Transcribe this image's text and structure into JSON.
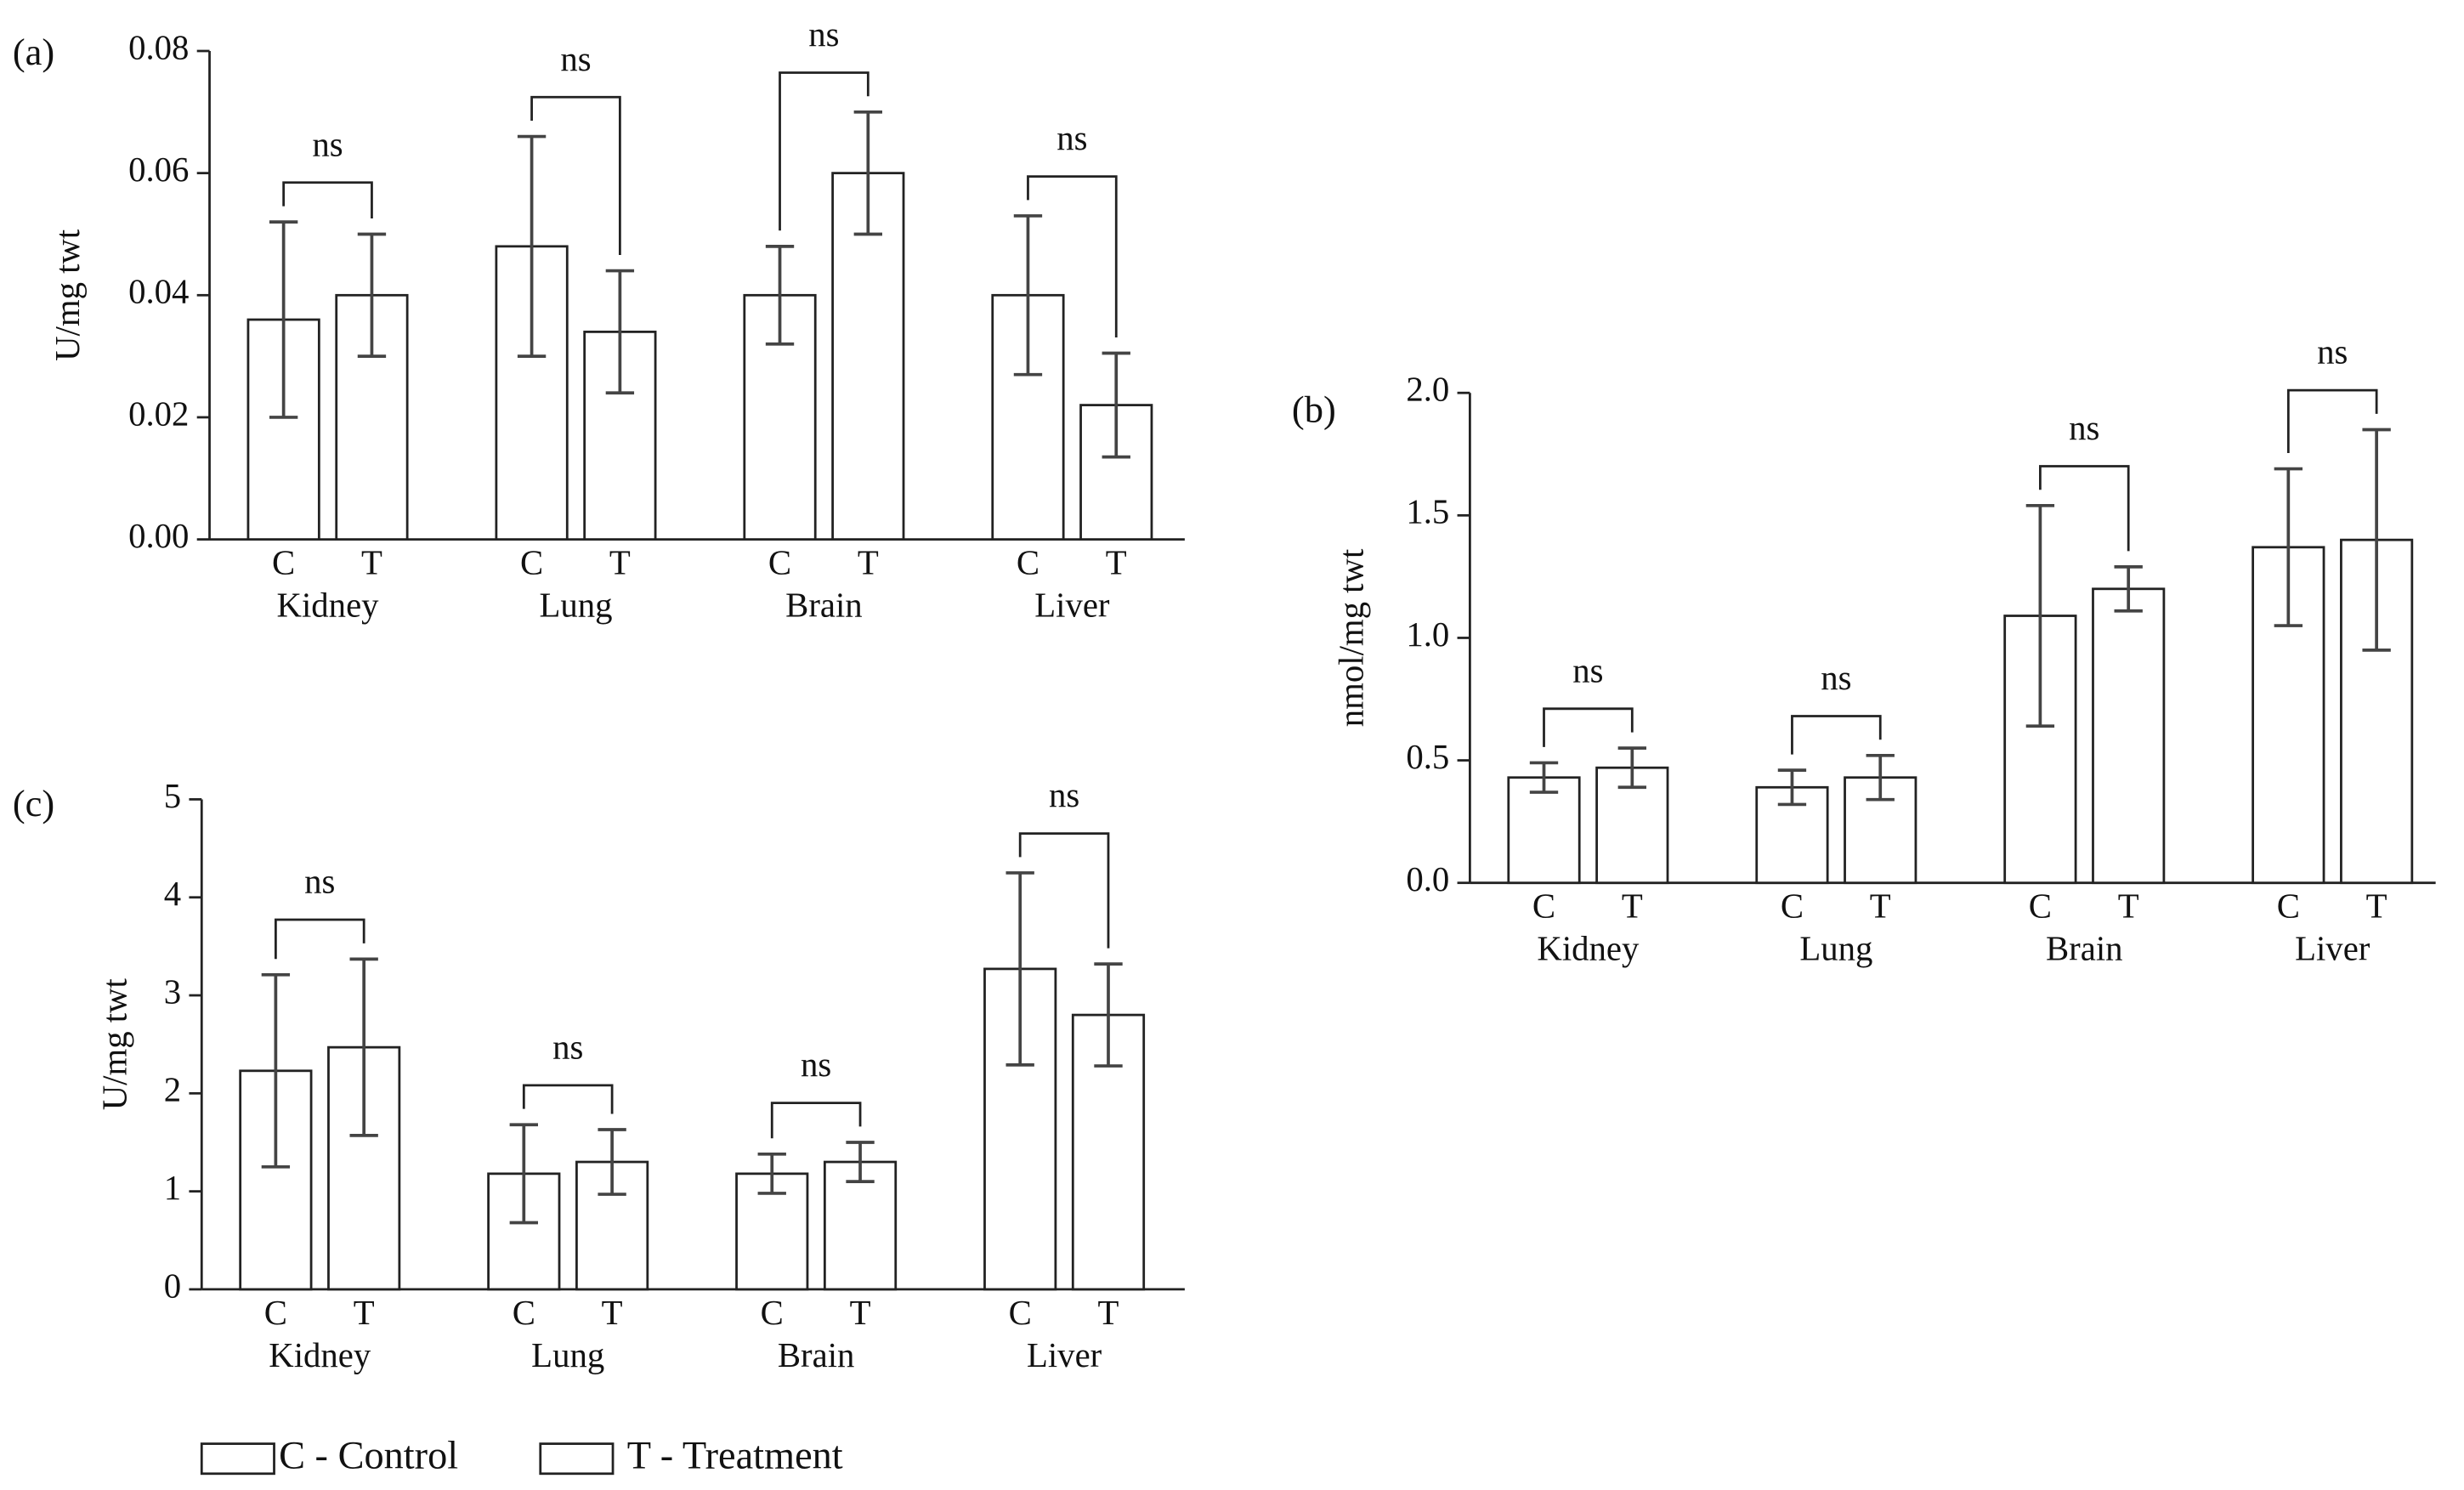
{
  "chart_data": [
    {
      "type": "bar",
      "label": "(a)",
      "y_label": "U/mg twt",
      "categories": [
        "Kidney",
        "Lung",
        "Brain",
        "Liver"
      ],
      "series": [
        {
          "name": "C",
          "color": "#ffffff",
          "values": [
            0.036,
            0.048,
            0.04,
            0.04
          ],
          "errors": [
            0.016,
            0.018,
            0.008,
            0.013
          ]
        },
        {
          "name": "T",
          "color": "#ffffff",
          "values": [
            0.04,
            0.034,
            0.06,
            0.022
          ],
          "errors": [
            0.01,
            0.01,
            0.01,
            0.0085
          ]
        }
      ],
      "annotations": [
        "ns",
        "ns",
        "ns",
        "ns"
      ],
      "ylim": [
        0,
        0.08
      ],
      "yticks": [
        {
          "value": 0,
          "label": "0.00"
        },
        {
          "value": 0.02,
          "label": "0.02"
        },
        {
          "value": 0.04,
          "label": "0.04"
        },
        {
          "value": 0.06,
          "label": "0.06"
        },
        {
          "value": 0.08,
          "label": "0.08"
        }
      ],
      "grid": false
    },
    {
      "type": "bar",
      "label": "(b)",
      "y_label": "nmol/mg twt",
      "categories": [
        "Kidney",
        "Lung",
        "Brain",
        "Liver"
      ],
      "series": [
        {
          "name": "C",
          "color": "#ffffff",
          "values": [
            0.43,
            0.39,
            1.09,
            1.37
          ],
          "errors": [
            0.06,
            0.07,
            0.45,
            0.32
          ]
        },
        {
          "name": "T",
          "color": "#ffffff",
          "values": [
            0.47,
            0.43,
            1.2,
            1.4
          ],
          "errors": [
            0.08,
            0.09,
            0.09,
            0.45
          ]
        }
      ],
      "annotations": [
        "ns",
        "ns",
        "ns",
        "ns"
      ],
      "ylim": [
        0,
        2
      ],
      "yticks": [
        {
          "value": 0,
          "label": "0.0"
        },
        0.5,
        {
          "value": 1,
          "label": "1.0"
        },
        1.5,
        {
          "value": 2,
          "label": "2.0"
        }
      ],
      "grid": false
    },
    {
      "type": "bar",
      "label": "(c)",
      "y_label": "U/mg twt",
      "categories": [
        "Kidney",
        "Lung",
        "Brain",
        "Liver"
      ],
      "series": [
        {
          "name": "C",
          "color": "#ffffff",
          "values": [
            2.23,
            1.18,
            1.18,
            3.27
          ],
          "errors": [
            0.98,
            0.5,
            0.2,
            0.98
          ]
        },
        {
          "name": "T",
          "color": "#ffffff",
          "values": [
            2.47,
            1.3,
            1.3,
            2.8
          ],
          "errors": [
            0.9,
            0.33,
            0.2,
            0.52
          ]
        }
      ],
      "annotations": [
        "ns",
        "ns",
        "ns",
        "ns"
      ],
      "ylim": [
        0,
        5
      ],
      "yticks": [
        0,
        1,
        2,
        3,
        4,
        5
      ],
      "grid": false
    }
  ],
  "legend": [
    "C - Control",
    "T - Treatment"
  ]
}
